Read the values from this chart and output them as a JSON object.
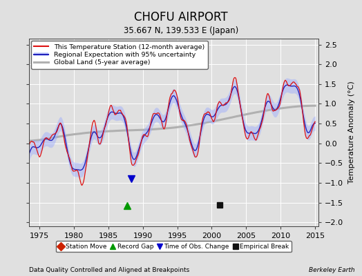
{
  "title": "CHOFU AIRPORT",
  "subtitle": "35.667 N, 139.533 E (Japan)",
  "ylabel": "Temperature Anomaly (°C)",
  "xlabel_note": "Data Quality Controlled and Aligned at Breakpoints",
  "credit": "Berkeley Earth",
  "xlim": [
    1973.5,
    2015.5
  ],
  "ylim": [
    -2.1,
    2.65
  ],
  "yticks": [
    -2,
    -1.5,
    -1,
    -0.5,
    0,
    0.5,
    1,
    1.5,
    2,
    2.5
  ],
  "xticks": [
    1975,
    1980,
    1985,
    1990,
    1995,
    2000,
    2005,
    2010,
    2015
  ],
  "bg_color": "#e0e0e0",
  "plot_bg_color": "#e0e0e0",
  "record_gap_x": 1987.7,
  "record_gap_y": -1.57,
  "obs_change_x": 1988.3,
  "obs_change_y": -0.9,
  "empirical_break_x": 2001.2,
  "empirical_break_y": -1.55
}
